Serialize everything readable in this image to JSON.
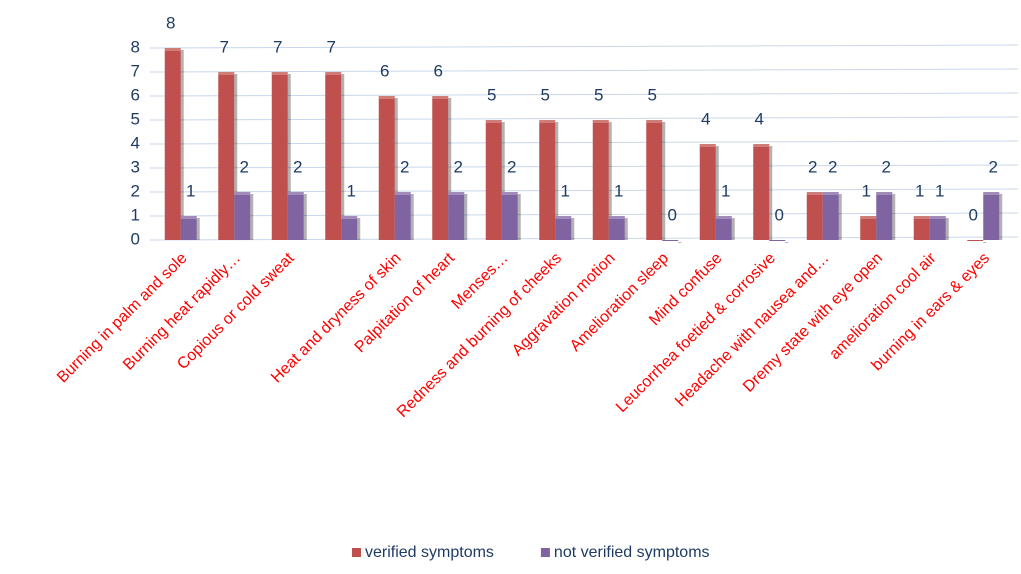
{
  "chart_data": {
    "type": "bar",
    "categories": [
      "Burning in palm and sole",
      "Burning heat rapidly…",
      "Copious or cold sweat",
      null,
      "Heat and dryness of skin",
      "Palpitation of heart",
      "Menses…",
      "Redness and burning of cheeks",
      "Aggravation motion",
      "Amelioration sleep",
      "Mind confuse",
      "Leucorrhea foetied & corrosive",
      "Headache with nausea and…",
      "Dremy state with eye open",
      "amelioration cool air",
      "burning in ears & eyes"
    ],
    "series": [
      {
        "name": "verified symptoms",
        "color": "#c0504d",
        "values": [
          8,
          7,
          7,
          7,
          6,
          6,
          5,
          5,
          5,
          5,
          4,
          4,
          2,
          1,
          1,
          0
        ]
      },
      {
        "name": "not verified symptoms",
        "color": "#8064a2",
        "values": [
          1,
          2,
          2,
          1,
          2,
          2,
          2,
          1,
          1,
          0,
          1,
          0,
          2,
          2,
          1,
          2
        ]
      }
    ],
    "ylim": [
      0,
      8
    ],
    "yticks": [
      0,
      1,
      2,
      3,
      4,
      5,
      6,
      7,
      8
    ],
    "grid": true,
    "legend": "bottom"
  }
}
